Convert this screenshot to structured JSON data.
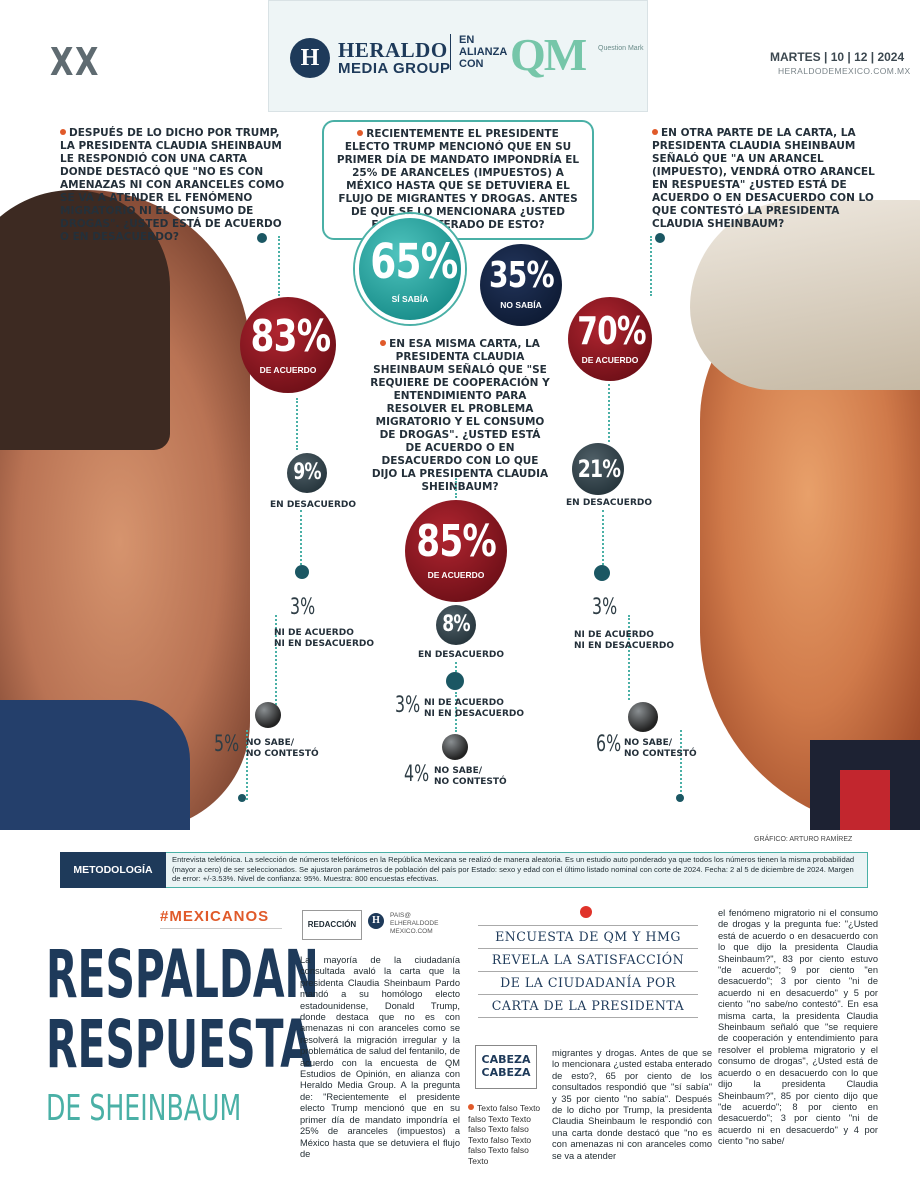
{
  "header": {
    "section": "XX",
    "brand_mark": "H",
    "brand_line1": "HERALDO",
    "brand_line2": "MEDIA GROUP",
    "alliance": "EN ALIANZA CON",
    "partner": "QM",
    "partner_sub": "Question Mark",
    "date": "MARTES | 10 | 12 | 2024",
    "website": "HERALDODEMEXICO.COM.MX"
  },
  "infographic": {
    "q1": "DESPUÉS DE LO DICHO POR TRUMP, LA PRESIDENTA CLAUDIA SHEINBAUM LE RESPONDIÓ CON UNA CARTA DONDE DESTACÓ QUE \"NO ES CON AMENAZAS NI CON ARANCELES COMO SE VA A ATENDER EL FENÓMENO MIGRATORIO NI EL CONSUMO DE DROGAS\". ¿USTED ESTÁ DE ACUERDO O EN DESACUERDO?",
    "q2": "RECIENTEMENTE EL PRESIDENTE ELECTO TRUMP MENCIONÓ QUE EN SU PRIMER DÍA DE MANDATO IMPONDRÍA EL 25% DE ARANCELES (IMPUESTOS) A MÉXICO HASTA QUE SE DETUVIERA EL FLUJO DE MIGRANTES Y DROGAS. ANTES DE QUE SE LO MENCIONARA ¿USTED ESTABA ENTERADO DE ESTO?",
    "q3": "EN OTRA PARTE DE LA CARTA, LA PRESIDENTA CLAUDIA SHEINBAUM SEÑALÓ QUE \"A UN ARANCEL (IMPUESTO), VENDRÁ OTRO ARANCEL EN RESPUESTA\" ¿USTED ESTÁ DE ACUERDO O EN DESACUERDO CON LO QUE CONTESTÓ LA PRESIDENTA CLAUDIA SHEINBAUM?",
    "q4": "EN ESA MISMA CARTA, LA PRESIDENTA CLAUDIA SHEINBAUM SEÑALÓ QUE \"SE REQUIERE DE COOPERACIÓN Y ENTENDIMIENTO PARA RESOLVER EL PROBLEMA MIGRATORIO Y EL CONSUMO DE DROGAS\". ¿USTED ESTÁ DE ACUERDO O EN DESACUERDO CON LO QUE DIJO LA PRESIDENTA CLAUDIA SHEINBAUM?",
    "left": {
      "acuerdo_pct": "83%",
      "acuerdo_lbl": "DE ACUERDO",
      "desacuerdo_pct": "9%",
      "desacuerdo_lbl": "EN DESACUERDO",
      "ni_pct": "3%",
      "ni_lbl1": "NI DE ACUERDO",
      "ni_lbl2": "NI EN DESACUERDO",
      "nosabe_pct": "5%",
      "nosabe_lbl1": "NO SABE/",
      "nosabe_lbl2": "NO CONTESTÓ"
    },
    "top": {
      "si_pct": "65%",
      "si_lbl": "SÍ SABÍA",
      "no_pct": "35%",
      "no_lbl": "NO SABÍA"
    },
    "center": {
      "acuerdo_pct": "85%",
      "acuerdo_lbl": "DE ACUERDO",
      "desacuerdo_pct": "8%",
      "desacuerdo_lbl": "EN DESACUERDO",
      "ni_pct": "3%",
      "ni_lbl1": "NI DE ACUERDO",
      "ni_lbl2": "NI EN DESACUERDO",
      "nosabe_pct": "4%",
      "nosabe_lbl1": "NO SABE/",
      "nosabe_lbl2": "NO CONTESTÓ"
    },
    "right": {
      "acuerdo_pct": "70%",
      "acuerdo_lbl": "DE ACUERDO",
      "desacuerdo_pct": "21%",
      "desacuerdo_lbl": "EN DESACUERDO",
      "ni_pct": "3%",
      "ni_lbl1": "NI DE ACUERDO",
      "ni_lbl2": "NI EN DESACUERDO",
      "nosabe_pct": "6%",
      "nosabe_lbl1": "NO SABE/",
      "nosabe_lbl2": "NO CONTESTÓ"
    },
    "credit": "GRÁFICO: ARTURO RAMÍREZ"
  },
  "methodology": {
    "label": "METODOLOGÍA",
    "text": "Entrevista telefónica. La selección de números telefónicos en la República Mexicana se realizó de manera aleatoria. Es un estudio auto ponderado ya que todos los números tienen la misma probabilidad (mayor a cero) de ser seleccionados. Se ajustaron parámetros de población del país por Estado: sexo y edad con el último listado nominal con corte de 2024. Fecha: 2 al 5 de diciembre de 2024. Margen de error: +/-3.53%. Nivel de confianza: 95%. Muestra: 800 encuestas efectivas."
  },
  "article": {
    "hashtag": "#MEXICANOS",
    "headline1": "RESPALDAN",
    "headline2": "RESPUESTA",
    "headline3": "DE SHEINBAUM",
    "byline": "REDACCIÓN",
    "byline_icon": "H",
    "byline_contact": "PAIS@ ELHERALDODE MEXICO.COM",
    "subhead": [
      "ENCUESTA DE QM Y HMG",
      "REVELA LA SATISFACCIÓN",
      "DE LA CIUDADANÍA POR",
      "CARTA DE LA PRESIDENTA"
    ],
    "cabeza": "CABEZA CABEZA",
    "placeholder": "Texto falso Texto falso Texto Texto falso Texto falso Texto falso Texto falso Texto falso Texto",
    "col1": "La mayoría de la ciudadanía consultada avaló la carta que la presidenta Claudia Sheinbaum Pardo mandó a su homólogo electo estadounidense, Donald Trump, donde destaca que no es con amenazas ni con aranceles como se resolverá la migración irregular y la problemática de salud del fentanilo, de acuerdo con la encuesta de QM Estudios de Opinión, en alianza con Heraldo Media Group. A la pregunta de: \"Recientemente el presidente electo Trump mencionó que en su primer día de mandato impondría el 25% de aranceles (impuestos) a México hasta que se detuviera el flujo de",
    "col2": "migrantes y drogas. Antes de que se lo mencionara ¿usted estaba enterado de esto?, 65 por ciento de los consultados respondió que \"sí sabía\" y 35 por ciento \"no sabía\". Después de lo dicho por Trump, la presidenta Claudia Sheinbaum le respondió con una carta donde destacó que \"no es con amenazas ni con aranceles como se va a atender",
    "col3": "el fenómeno migratorio ni el consumo de drogas y la pregunta fue: \"¿Usted está de acuerdo o en desacuerdo con lo que dijo la presidenta Claudia Sheinbaum?\", 83 por ciento estuvo \"de acuerdo\"; 9 por ciento \"en desacuerdo\"; 3 por ciento \"ni de acuerdo ni en desacuerdo\" y 5 por ciento \"no sabe/no contestó\". En esa misma carta, la presidenta Claudia Sheinbaum señaló que \"se requiere de cooperación y entendimiento para resolver el problema migratorio y el consumo de drogas\", ¿Usted está de acuerdo o en desacuerdo con lo que dijo la presidenta Claudia Sheinbaum?\", 85 por ciento dijo que \"de acuerdo\"; 8 por ciento en desacuerdo\"; 3 por ciento \"ni de acuerdo ni en desacuerdo\" y 4 por ciento \"no sabe/"
  },
  "colors": {
    "navy": "#1e3a5a",
    "teal": "#4ab0a6",
    "crimson": "#8c1a22",
    "orange": "#e05a2a"
  }
}
